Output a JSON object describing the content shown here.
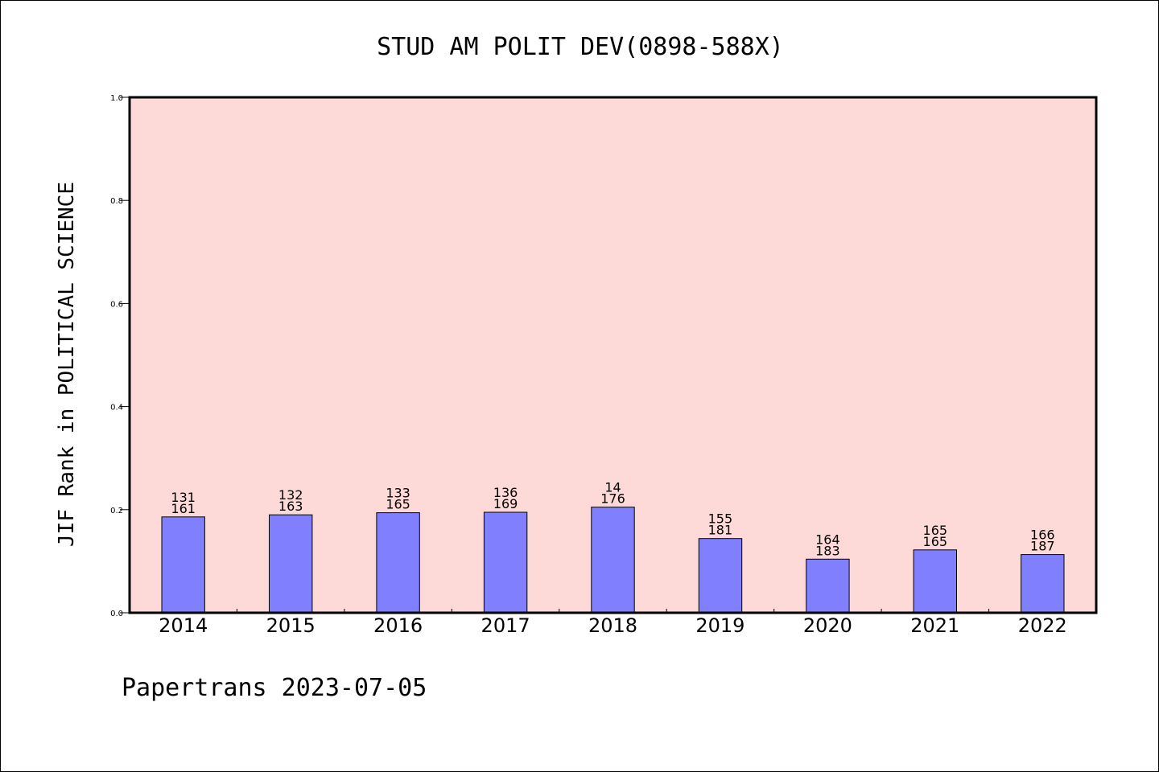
{
  "chart_data": {
    "type": "bar",
    "title": "STUD AM POLIT DEV(0898-588X)",
    "ylabel": "JIF Rank in POLITICAL SCIENCE",
    "xlabel": "",
    "ylim": [
      0,
      1.0
    ],
    "yticks": [
      "0.0",
      "0.2",
      "0.4",
      "0.6",
      "0.8",
      "1.0"
    ],
    "categories": [
      "2014",
      "2015",
      "2016",
      "2017",
      "2018",
      "2019",
      "2020",
      "2021",
      "2022"
    ],
    "values": [
      0.186,
      0.19,
      0.194,
      0.195,
      0.205,
      0.144,
      0.104,
      0.122,
      0.113
    ],
    "labels_top": [
      "131",
      "132",
      "133",
      "136",
      "14",
      "155",
      "164",
      "165",
      "166"
    ],
    "labels_bottom": [
      "161",
      "163",
      "165",
      "169",
      "176",
      "181",
      "183",
      "165",
      "187"
    ],
    "grid": false,
    "plot_background": "#fddad7",
    "bar_color": "#8080ff"
  },
  "footer": "Papertrans 2023-07-05"
}
